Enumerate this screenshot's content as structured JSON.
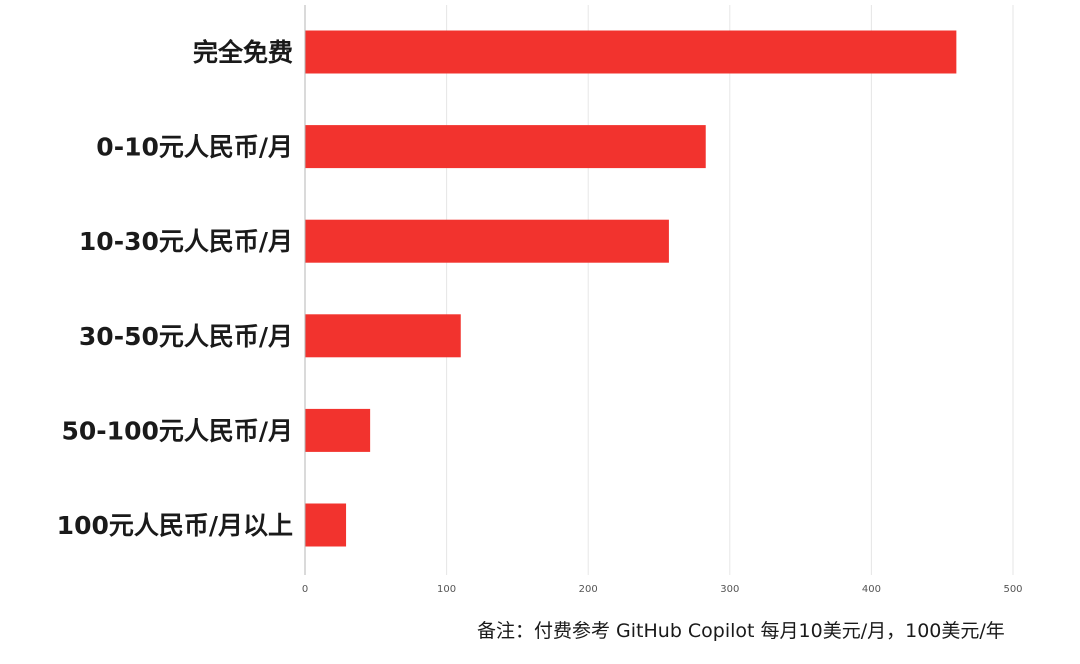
{
  "chart_data": {
    "type": "bar",
    "orientation": "horizontal",
    "categories": [
      "完全免费",
      "0-10元人民币/月",
      "10-30元人民币/月",
      "30-50元人民币/月",
      "50-100元人民币/月",
      "100元人民币/月以上"
    ],
    "values": [
      460,
      283,
      257,
      110,
      46,
      29
    ],
    "xlim": [
      0,
      500
    ],
    "xticks": [
      0,
      100,
      200,
      300,
      400,
      500
    ],
    "grid": true,
    "bar_color": "#f2332e",
    "title": "",
    "xlabel": "",
    "ylabel": ""
  },
  "note": "备注：付费参考 GitHub Copilot 每月10美元/月，100美元/年"
}
